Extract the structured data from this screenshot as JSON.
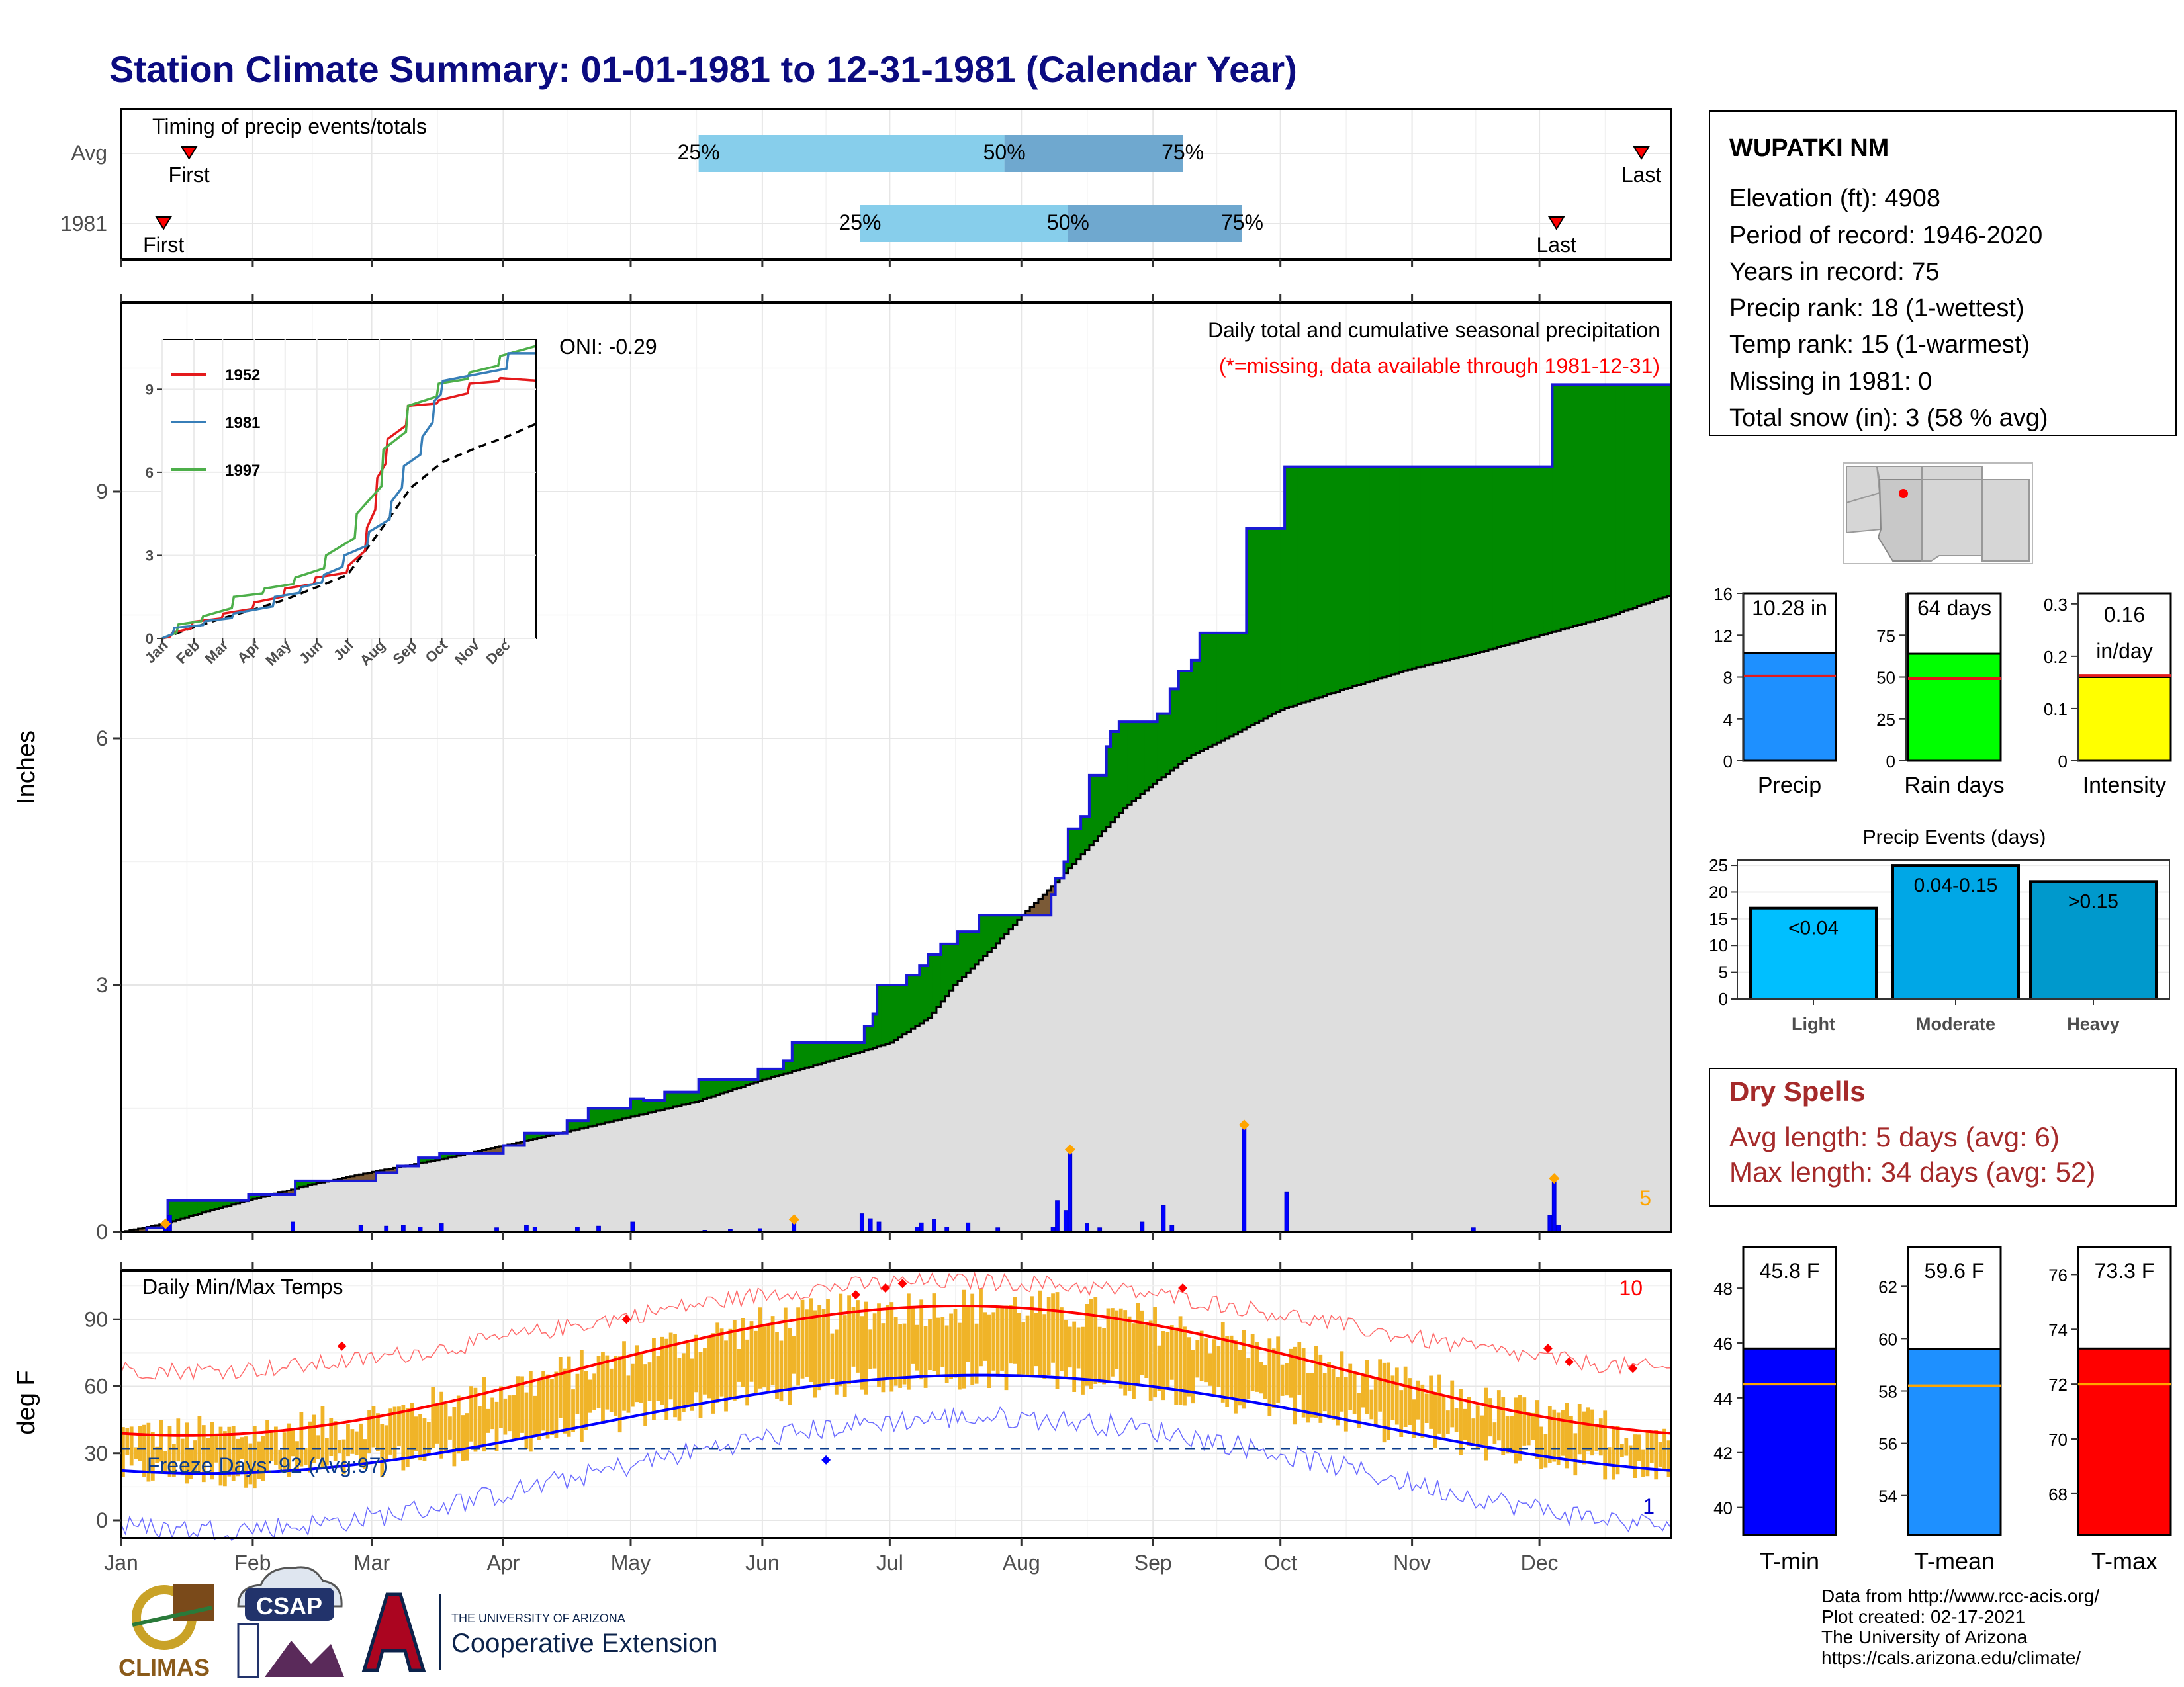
{
  "page_title": "Station Climate Summary: 01-01-1981 to 12-31-1981 (Calendar Year)",
  "months": [
    "Jan",
    "Feb",
    "Mar",
    "Apr",
    "May",
    "Jun",
    "Jul",
    "Aug",
    "Sep",
    "Oct",
    "Nov",
    "Dec"
  ],
  "timing_panel": {
    "title": "Timing of precip events/totals",
    "rows": [
      {
        "label": "Avg",
        "first_doy": 16,
        "last_doy": 358,
        "p25_doy": 136,
        "p50_doy": 208,
        "p75_doy": 250,
        "p25_label": "25%",
        "p50_label": "50%",
        "p75_label": "75%",
        "first_label": "First",
        "last_label": "Last"
      },
      {
        "label": "1981",
        "first_doy": 10,
        "last_doy": 338,
        "p25_doy": 174,
        "p50_doy": 223,
        "p75_doy": 264,
        "p25_label": "25%",
        "p50_label": "50%",
        "p75_label": "75%",
        "first_label": "First",
        "last_label": "Last"
      }
    ]
  },
  "precip_panel": {
    "ylabel": "Inches",
    "yticks": [
      0,
      3,
      6,
      9
    ],
    "ylim": [
      0,
      11.3
    ],
    "title": "Daily total and cumulative seasonal precipitation",
    "subtitle": "(*=missing, data available through 1981-12-31)",
    "oni_label": "ONI: -0.29",
    "corner_label": "5",
    "cumulative_1981": [
      [
        0,
        0
      ],
      [
        6,
        0.05
      ],
      [
        10,
        0.12
      ],
      [
        11,
        0.38
      ],
      [
        30,
        0.45
      ],
      [
        40,
        0.45
      ],
      [
        41,
        0.62
      ],
      [
        55,
        0.62
      ],
      [
        60,
        0.72
      ],
      [
        65,
        0.8
      ],
      [
        70,
        0.9
      ],
      [
        75,
        0.95
      ],
      [
        90,
        1.05
      ],
      [
        95,
        1.2
      ],
      [
        105,
        1.35
      ],
      [
        110,
        1.5
      ],
      [
        120,
        1.62
      ],
      [
        123,
        1.6
      ],
      [
        128,
        1.7
      ],
      [
        136,
        1.85
      ],
      [
        150,
        1.98
      ],
      [
        156,
        2.08
      ],
      [
        158,
        2.3
      ],
      [
        174,
        2.3
      ],
      [
        175,
        2.5
      ],
      [
        177,
        2.65
      ],
      [
        178,
        3.0
      ],
      [
        184,
        3.0
      ],
      [
        185,
        3.12
      ],
      [
        188,
        3.24
      ],
      [
        190,
        3.37
      ],
      [
        193,
        3.5
      ],
      [
        197,
        3.65
      ],
      [
        202,
        3.85
      ],
      [
        212,
        3.85
      ],
      [
        219,
        4.1
      ],
      [
        220,
        4.3
      ],
      [
        222,
        4.5
      ],
      [
        223,
        4.9
      ],
      [
        226,
        5.05
      ],
      [
        228,
        5.55
      ],
      [
        232,
        5.9
      ],
      [
        233,
        6.08
      ],
      [
        235,
        6.2
      ],
      [
        244,
        6.3
      ],
      [
        247,
        6.6
      ],
      [
        249,
        6.82
      ],
      [
        252,
        6.95
      ],
      [
        254,
        7.28
      ],
      [
        264,
        7.28
      ],
      [
        265,
        8.55
      ],
      [
        272,
        8.55
      ],
      [
        274,
        9.3
      ],
      [
        336,
        9.3
      ],
      [
        337,
        10.3
      ],
      [
        365,
        10.3
      ]
    ],
    "avg_cumulative": [
      [
        0,
        0
      ],
      [
        10,
        0.1
      ],
      [
        20,
        0.25
      ],
      [
        31,
        0.4
      ],
      [
        45,
        0.58
      ],
      [
        59,
        0.73
      ],
      [
        75,
        0.88
      ],
      [
        90,
        1.05
      ],
      [
        105,
        1.22
      ],
      [
        120,
        1.4
      ],
      [
        135,
        1.58
      ],
      [
        151,
        1.85
      ],
      [
        165,
        2.05
      ],
      [
        181,
        2.3
      ],
      [
        190,
        2.6
      ],
      [
        196,
        3.0
      ],
      [
        205,
        3.45
      ],
      [
        212,
        3.85
      ],
      [
        220,
        4.25
      ],
      [
        228,
        4.7
      ],
      [
        236,
        5.15
      ],
      [
        243,
        5.45
      ],
      [
        252,
        5.8
      ],
      [
        262,
        6.05
      ],
      [
        273,
        6.35
      ],
      [
        288,
        6.6
      ],
      [
        304,
        6.85
      ],
      [
        320,
        7.05
      ],
      [
        334,
        7.25
      ],
      [
        350,
        7.48
      ],
      [
        365,
        7.75
      ]
    ],
    "daily_bars": [
      [
        10,
        0.06
      ],
      [
        11,
        0.2
      ],
      [
        40,
        0.12
      ],
      [
        56,
        0.08
      ],
      [
        62,
        0.07
      ],
      [
        66,
        0.08
      ],
      [
        70,
        0.06
      ],
      [
        75,
        0.1
      ],
      [
        88,
        0.05
      ],
      [
        95,
        0.08
      ],
      [
        97,
        0.06
      ],
      [
        107,
        0.06
      ],
      [
        112,
        0.07
      ],
      [
        120,
        0.12
      ],
      [
        137,
        0.02
      ],
      [
        143,
        0.03
      ],
      [
        150,
        0.04
      ],
      [
        158,
        0.12
      ],
      [
        174,
        0.22
      ],
      [
        176,
        0.16
      ],
      [
        178,
        0.12
      ],
      [
        187,
        0.06
      ],
      [
        188,
        0.11
      ],
      [
        191,
        0.15
      ],
      [
        194,
        0.06
      ],
      [
        199,
        0.11
      ],
      [
        206,
        0.05
      ],
      [
        219,
        0.06
      ],
      [
        220,
        0.38
      ],
      [
        222,
        0.26
      ],
      [
        223,
        0.95
      ],
      [
        227,
        0.1
      ],
      [
        230,
        0.05
      ],
      [
        240,
        0.12
      ],
      [
        245,
        0.32
      ],
      [
        247,
        0.08
      ],
      [
        264,
        1.28
      ],
      [
        274,
        0.48
      ],
      [
        318,
        0.05
      ],
      [
        336,
        0.2
      ],
      [
        337,
        0.6
      ],
      [
        338,
        0.08
      ]
    ],
    "max_markers": [
      [
        10,
        0.1
      ],
      [
        158,
        0.15
      ],
      [
        223,
        1.0
      ],
      [
        264,
        1.3
      ],
      [
        337,
        0.65
      ]
    ],
    "inset": {
      "yticks": [
        0,
        3,
        6,
        9
      ],
      "months": [
        "Jan",
        "Feb",
        "Mar",
        "Apr",
        "May",
        "Jun",
        "Jul",
        "Aug",
        "Sep",
        "Oct",
        "Nov",
        "Dec"
      ],
      "legend": [
        "1952",
        "1981",
        "1997"
      ],
      "colors": [
        "#e41a1c",
        "#377eb8",
        "#4daf4a"
      ],
      "series": {
        "1952": [
          [
            0,
            0
          ],
          [
            10,
            0.2
          ],
          [
            30,
            0.6
          ],
          [
            60,
            0.9
          ],
          [
            90,
            1.3
          ],
          [
            120,
            1.8
          ],
          [
            150,
            2.2
          ],
          [
            181,
            2.6
          ],
          [
            200,
            4.0
          ],
          [
            210,
            5.8
          ],
          [
            220,
            7.2
          ],
          [
            240,
            8.4
          ],
          [
            270,
            8.6
          ],
          [
            300,
            9.2
          ],
          [
            330,
            9.4
          ],
          [
            365,
            9.2
          ]
        ],
        "1981": [
          [
            0,
            0
          ],
          [
            11,
            0.38
          ],
          [
            41,
            0.62
          ],
          [
            70,
            0.9
          ],
          [
            110,
            1.5
          ],
          [
            136,
            1.85
          ],
          [
            158,
            2.3
          ],
          [
            178,
            3.0
          ],
          [
            202,
            3.85
          ],
          [
            223,
            4.9
          ],
          [
            235,
            6.2
          ],
          [
            254,
            7.28
          ],
          [
            265,
            8.55
          ],
          [
            274,
            9.3
          ],
          [
            337,
            10.3
          ],
          [
            365,
            10.3
          ]
        ],
        "1997": [
          [
            0,
            0
          ],
          [
            15,
            0.5
          ],
          [
            40,
            0.8
          ],
          [
            70,
            1.5
          ],
          [
            100,
            1.8
          ],
          [
            130,
            2.2
          ],
          [
            160,
            3.0
          ],
          [
            190,
            4.5
          ],
          [
            215,
            6.8
          ],
          [
            240,
            8.4
          ],
          [
            270,
            9.2
          ],
          [
            300,
            9.6
          ],
          [
            330,
            10.2
          ],
          [
            365,
            11.0
          ]
        ],
        "avg": [
          [
            0,
            0
          ],
          [
            31,
            0.4
          ],
          [
            59,
            0.73
          ],
          [
            90,
            1.05
          ],
          [
            120,
            1.4
          ],
          [
            151,
            1.85
          ],
          [
            181,
            2.3
          ],
          [
            212,
            3.85
          ],
          [
            243,
            5.45
          ],
          [
            273,
            6.35
          ],
          [
            304,
            6.85
          ],
          [
            334,
            7.25
          ],
          [
            365,
            7.75
          ]
        ]
      }
    }
  },
  "temp_panel": {
    "ylabel": "deg F",
    "title": "Daily Min/Max Temps",
    "yticks": [
      0,
      30,
      60,
      90
    ],
    "ylim": [
      -8,
      112
    ],
    "freeze_label": "Freeze Days: 92 (Avg:97)",
    "freeze_line": 32,
    "corner_high": "10",
    "corner_low": "1"
  },
  "station_info": {
    "name": "WUPATKI NM",
    "lines": [
      "Elevation (ft): 4908",
      "Period of record: 1946-2020",
      "Years in record: 75",
      "Precip rank: 18 (1-wettest)",
      "Temp rank: 15 (1-warmest)",
      "Missing in 1981: 0",
      "Total snow (in): 3 (58 % avg)"
    ]
  },
  "summary_bars": [
    {
      "label": "Precip",
      "value": 10.28,
      "value_label": "10.28 in",
      "avg": 8.1,
      "ymax": 16,
      "yticks": [
        0,
        4,
        8,
        12,
        16
      ],
      "color": "#1e90ff"
    },
    {
      "label": "Rain days",
      "value": 64,
      "value_label": "64 days",
      "avg": 49,
      "ymax": 100,
      "yticks": [
        0,
        25,
        50,
        75
      ],
      "color": "#00ff00"
    },
    {
      "label": "Intensity",
      "value": 0.16,
      "value_label": "0.16 in/day",
      "avg": 0.163,
      "ymax": 0.32,
      "yticks": [
        0.0,
        0.1,
        0.2,
        0.3
      ],
      "color": "#ffff00"
    }
  ],
  "precip_events": {
    "title": "Precip Events (days)",
    "yticks": [
      0,
      5,
      10,
      15,
      20,
      25
    ],
    "categories": [
      "Light",
      "Moderate",
      "Heavy"
    ],
    "bar_labels": [
      "<0.04",
      "0.04-0.15",
      ">0.15"
    ],
    "values": [
      17,
      25,
      22
    ],
    "colors": [
      "#00bfff",
      "#00a7e6",
      "#0099cc"
    ]
  },
  "dry_spells": {
    "title": "Dry Spells",
    "avg_length": "Avg length: 5 days (avg: 6)",
    "max_length": "Max length: 34 days (avg: 52)"
  },
  "temp_bars": [
    {
      "label": "T-min",
      "value": 45.8,
      "value_label": "45.8 F",
      "avg": 44.5,
      "ymin": 39,
      "ymax": 49.5,
      "yticks": [
        40,
        42,
        44,
        46,
        48
      ],
      "color": "#0000ff"
    },
    {
      "label": "T-mean",
      "value": 59.6,
      "value_label": "59.6 F",
      "avg": 58.2,
      "ymin": 52.5,
      "ymax": 63.5,
      "yticks": [
        54,
        56,
        58,
        60,
        62
      ],
      "color": "#1e90ff"
    },
    {
      "label": "T-max",
      "value": 73.3,
      "value_label": "73.3 F",
      "avg": 72.0,
      "ymin": 66.5,
      "ymax": 77,
      "yticks": [
        68,
        70,
        72,
        74,
        76
      ],
      "color": "#ff0000"
    }
  ],
  "footer": {
    "lines": [
      "Data from http://www.rcc-acis.org/",
      "Plot created: 02-17-2021",
      "The University of Arizona",
      "https://cals.arizona.edu/climate/"
    ],
    "logo_climas": "CLIMAS",
    "logo_csap": "CSAP",
    "logo_ua_small": "THE UNIVERSITY OF ARIZONA",
    "logo_ua_big": "Cooperative Extension"
  }
}
